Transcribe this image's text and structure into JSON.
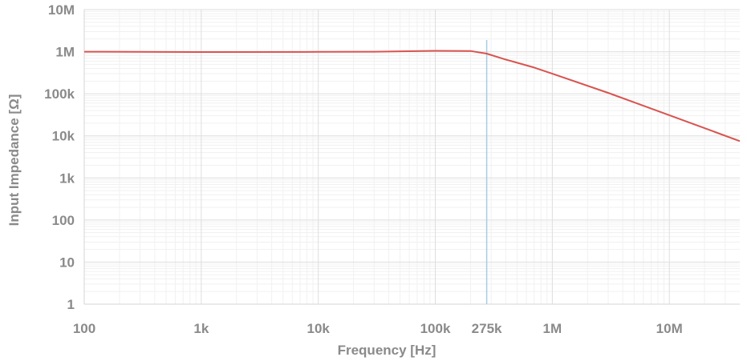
{
  "chart_data": {
    "type": "line",
    "title": "",
    "xlabel": "Frequency [Hz]",
    "ylabel": "Input Impedance [Ω]",
    "x_scale": "log",
    "y_scale": "log",
    "xlim": [
      100,
      40000000
    ],
    "ylim": [
      1,
      10000000
    ],
    "grid": true,
    "x_ticks": [
      {
        "value": 100,
        "label": "100"
      },
      {
        "value": 1000,
        "label": "1k"
      },
      {
        "value": 10000,
        "label": "10k"
      },
      {
        "value": 100000,
        "label": "100k"
      },
      {
        "value": 275000,
        "label": "275k"
      },
      {
        "value": 1000000,
        "label": "1M"
      },
      {
        "value": 10000000,
        "label": "10M"
      }
    ],
    "y_ticks": [
      {
        "value": 1,
        "label": "1"
      },
      {
        "value": 10,
        "label": "10"
      },
      {
        "value": 100,
        "label": "100"
      },
      {
        "value": 1000,
        "label": "1k"
      },
      {
        "value": 10000,
        "label": "10k"
      },
      {
        "value": 100000,
        "label": "100k"
      },
      {
        "value": 1000000,
        "label": "1M"
      },
      {
        "value": 10000000,
        "label": "10M"
      }
    ],
    "marker_line": {
      "x": 275000,
      "color": "#a9cbe3"
    },
    "series": [
      {
        "color": "#d9534f",
        "x": [
          100,
          1000,
          10000,
          30000,
          100000,
          200000,
          275000,
          400000,
          700000,
          1000000,
          3000000,
          10000000,
          40000000
        ],
        "y": [
          1000000,
          980000,
          990000,
          1000000,
          1050000,
          1040000,
          900000,
          650000,
          420000,
          300000,
          105000,
          31000,
          7500
        ]
      }
    ]
  }
}
